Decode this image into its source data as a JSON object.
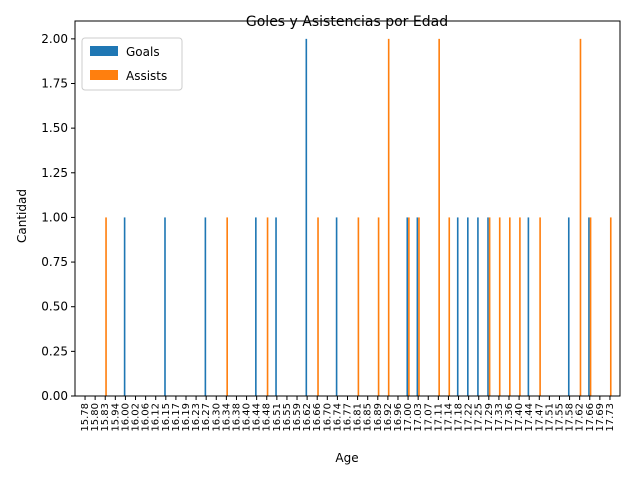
{
  "chart_data": {
    "type": "bar",
    "title": "Goles y Asistencias por Edad",
    "xlabel": "Age",
    "ylabel": "Cantidad",
    "ylim": [
      0,
      2.1
    ],
    "yticks": [
      "0.00",
      "0.25",
      "0.50",
      "0.75",
      "1.00",
      "1.25",
      "1.50",
      "1.75",
      "2.00"
    ],
    "legend_position": "top-left",
    "categories": [
      "15.78",
      "15.80",
      "15.83",
      "15.94",
      "16.00",
      "16.02",
      "16.06",
      "16.12",
      "16.15",
      "16.17",
      "16.19",
      "16.23",
      "16.27",
      "16.30",
      "16.34",
      "16.38",
      "16.40",
      "16.44",
      "16.48",
      "16.51",
      "16.55",
      "16.59",
      "16.62",
      "16.66",
      "16.70",
      "16.74",
      "16.77",
      "16.81",
      "16.85",
      "16.89",
      "16.92",
      "16.96",
      "17.00",
      "17.03",
      "17.07",
      "17.11",
      "17.14",
      "17.18",
      "17.22",
      "17.25",
      "17.29",
      "17.33",
      "17.36",
      "17.40",
      "17.44",
      "17.47",
      "17.51",
      "17.55",
      "17.58",
      "17.62",
      "17.66",
      "17.69",
      "17.73"
    ],
    "series": [
      {
        "name": "Goals",
        "color": "#1f77b4",
        "values": [
          0,
          0,
          0,
          0,
          1,
          0,
          0,
          0,
          1,
          0,
          0,
          0,
          1,
          0,
          0,
          0,
          0,
          1,
          0,
          1,
          0,
          0,
          2,
          0,
          0,
          1,
          0,
          0,
          0,
          0,
          0,
          0,
          1,
          1,
          0,
          0,
          0,
          1,
          1,
          1,
          1,
          0,
          0,
          0,
          1,
          0,
          0,
          0,
          1,
          0,
          1,
          0,
          0
        ]
      },
      {
        "name": "Assists",
        "color": "#ff7f0e",
        "values": [
          0,
          0,
          1,
          0,
          0,
          0,
          0,
          0,
          0,
          0,
          0,
          0,
          0,
          0,
          1,
          0,
          0,
          0,
          1,
          0,
          0,
          0,
          0,
          1,
          0,
          0,
          0,
          1,
          0,
          1,
          2,
          0,
          1,
          1,
          0,
          2,
          1,
          0,
          0,
          0,
          1,
          1,
          1,
          1,
          0,
          1,
          0,
          0,
          0,
          2,
          1,
          0,
          1
        ]
      }
    ]
  }
}
